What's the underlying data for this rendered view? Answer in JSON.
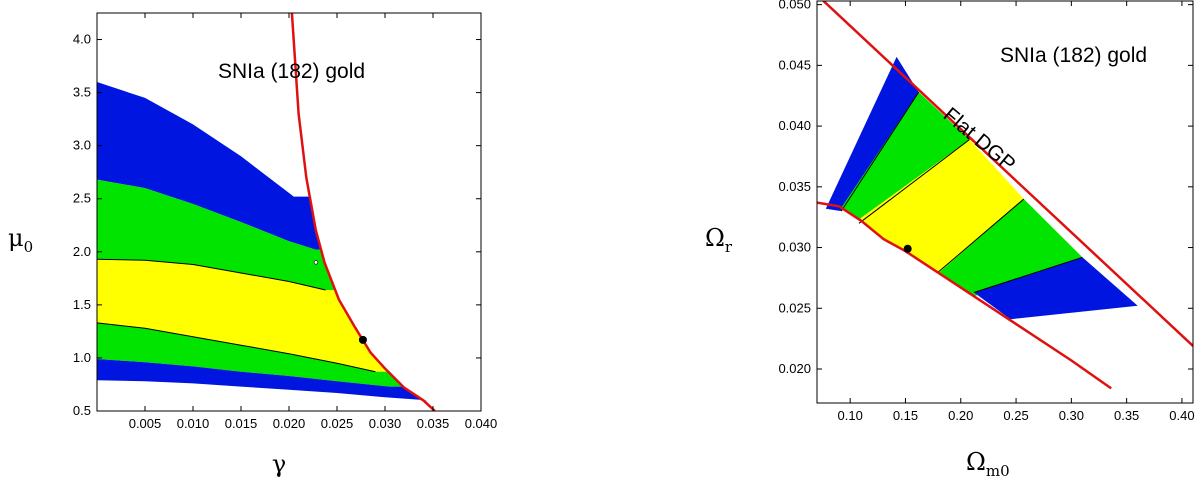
{
  "chart_data": [
    {
      "type": "area",
      "title": "",
      "annotation": "SNIa (182) gold",
      "xlabel": "γ",
      "ylabel": "μ",
      "ylabel_sub": "0",
      "xlim": [
        0.0,
        0.04
      ],
      "ylim": [
        0.5,
        4.25
      ],
      "xticks": [
        0.005,
        0.01,
        0.015,
        0.02,
        0.025,
        0.03,
        0.035,
        0.04
      ],
      "xtick_labels": [
        "0.005",
        "0.010",
        "0.015",
        "0.020",
        "0.025",
        "0.030",
        "0.035",
        "0.040"
      ],
      "yticks": [
        0.5,
        1.0,
        1.5,
        2.0,
        2.5,
        3.0,
        3.5,
        4.0
      ],
      "ytick_labels": [
        "0.5",
        "1.0",
        "1.5",
        "2.0",
        "2.5",
        "3.0",
        "3.5",
        "4.0"
      ],
      "colors": {
        "outer": "#0016e0",
        "middle": "#00e400",
        "inner": "#ffff00",
        "boundary": "#e01010"
      },
      "boundary_curve": [
        [
          0.0203,
          4.25
        ],
        [
          0.021,
          3.3
        ],
        [
          0.0218,
          2.7
        ],
        [
          0.0228,
          2.2
        ],
        [
          0.0237,
          1.9
        ],
        [
          0.0252,
          1.55
        ],
        [
          0.0268,
          1.3
        ],
        [
          0.0285,
          1.05
        ],
        [
          0.03,
          0.9
        ],
        [
          0.032,
          0.72
        ],
        [
          0.034,
          0.6
        ],
        [
          0.0352,
          0.5
        ]
      ],
      "regions": {
        "outer_top": [
          [
            0.0,
            3.6
          ],
          [
            0.005,
            3.45
          ],
          [
            0.01,
            3.2
          ],
          [
            0.015,
            2.9
          ],
          [
            0.0205,
            2.52
          ]
        ],
        "middle_top": [
          [
            0.0,
            2.68
          ],
          [
            0.005,
            2.6
          ],
          [
            0.01,
            2.45
          ],
          [
            0.015,
            2.28
          ],
          [
            0.02,
            2.1
          ],
          [
            0.0228,
            2.02
          ]
        ],
        "inner_top": [
          [
            0.0,
            1.93
          ],
          [
            0.005,
            1.92
          ],
          [
            0.01,
            1.88
          ],
          [
            0.015,
            1.8
          ],
          [
            0.02,
            1.72
          ],
          [
            0.0238,
            1.64
          ]
        ],
        "inner_bottom": [
          [
            0.0,
            1.33
          ],
          [
            0.005,
            1.28
          ],
          [
            0.01,
            1.2
          ],
          [
            0.015,
            1.12
          ],
          [
            0.02,
            1.04
          ],
          [
            0.025,
            0.95
          ],
          [
            0.029,
            0.87
          ]
        ],
        "middle_bottom": [
          [
            0.0,
            0.99
          ],
          [
            0.005,
            0.96
          ],
          [
            0.01,
            0.92
          ],
          [
            0.015,
            0.87
          ],
          [
            0.02,
            0.83
          ],
          [
            0.025,
            0.78
          ],
          [
            0.0305,
            0.73
          ]
        ],
        "outer_bottom": [
          [
            0.0,
            0.79
          ],
          [
            0.005,
            0.78
          ],
          [
            0.01,
            0.76
          ],
          [
            0.015,
            0.73
          ],
          [
            0.02,
            0.7
          ],
          [
            0.025,
            0.67
          ],
          [
            0.03,
            0.63
          ],
          [
            0.0345,
            0.6
          ]
        ]
      },
      "best_fit_point": [
        0.0277,
        1.17
      ],
      "open_point": [
        0.0228,
        1.9
      ]
    },
    {
      "type": "area",
      "title": "",
      "annotation": "SNIa (182) gold",
      "curve_label": "Flat DGP",
      "xlabel": "Ω",
      "xlabel_sub": "m0",
      "ylabel": "Ω",
      "ylabel_sub": "r",
      "xlim": [
        0.07,
        0.41
      ],
      "ylim": [
        0.0172,
        0.0503
      ],
      "xticks": [
        0.1,
        0.15,
        0.2,
        0.25,
        0.3,
        0.35,
        0.4
      ],
      "xtick_labels": [
        "0.10",
        "0.15",
        "0.20",
        "0.25",
        "0.30",
        "0.35",
        "0.40"
      ],
      "yticks": [
        0.02,
        0.025,
        0.03,
        0.035,
        0.04,
        0.045,
        0.05
      ],
      "ytick_labels": [
        "0.020",
        "0.025",
        "0.030",
        "0.035",
        "0.040",
        "0.045",
        "0.050"
      ],
      "colors": {
        "outer": "#0016e0",
        "middle": "#00e400",
        "inner": "#ffff00",
        "boundary": "#e01010"
      },
      "flat_line": [
        [
          0.07,
          0.0508
        ],
        [
          0.41,
          0.0219
        ]
      ],
      "lower_curve": [
        [
          0.07,
          0.0337
        ],
        [
          0.09,
          0.0334
        ],
        [
          0.11,
          0.0322
        ],
        [
          0.13,
          0.0307
        ],
        [
          0.15,
          0.0297
        ],
        [
          0.2,
          0.0267
        ],
        [
          0.25,
          0.0237
        ],
        [
          0.3,
          0.0207
        ],
        [
          0.336,
          0.0184
        ]
      ],
      "regions": {
        "outer_left_edge": [
          [
            0.078,
            0.0332
          ],
          [
            0.142,
            0.0457
          ]
        ],
        "middle_left_edge": [
          [
            0.092,
            0.033
          ],
          [
            0.162,
            0.0428
          ]
        ],
        "inner_left_edge": [
          [
            0.108,
            0.032
          ],
          [
            0.208,
            0.0389
          ]
        ],
        "inner_right_edge": [
          [
            0.18,
            0.028
          ],
          [
            0.257,
            0.034
          ]
        ],
        "middle_right_edge": [
          [
            0.212,
            0.0263
          ],
          [
            0.31,
            0.0292
          ]
        ],
        "outer_right_edge": [
          [
            0.245,
            0.0241
          ],
          [
            0.36,
            0.0252
          ]
        ]
      },
      "best_fit_point": [
        0.152,
        0.0299
      ]
    }
  ]
}
